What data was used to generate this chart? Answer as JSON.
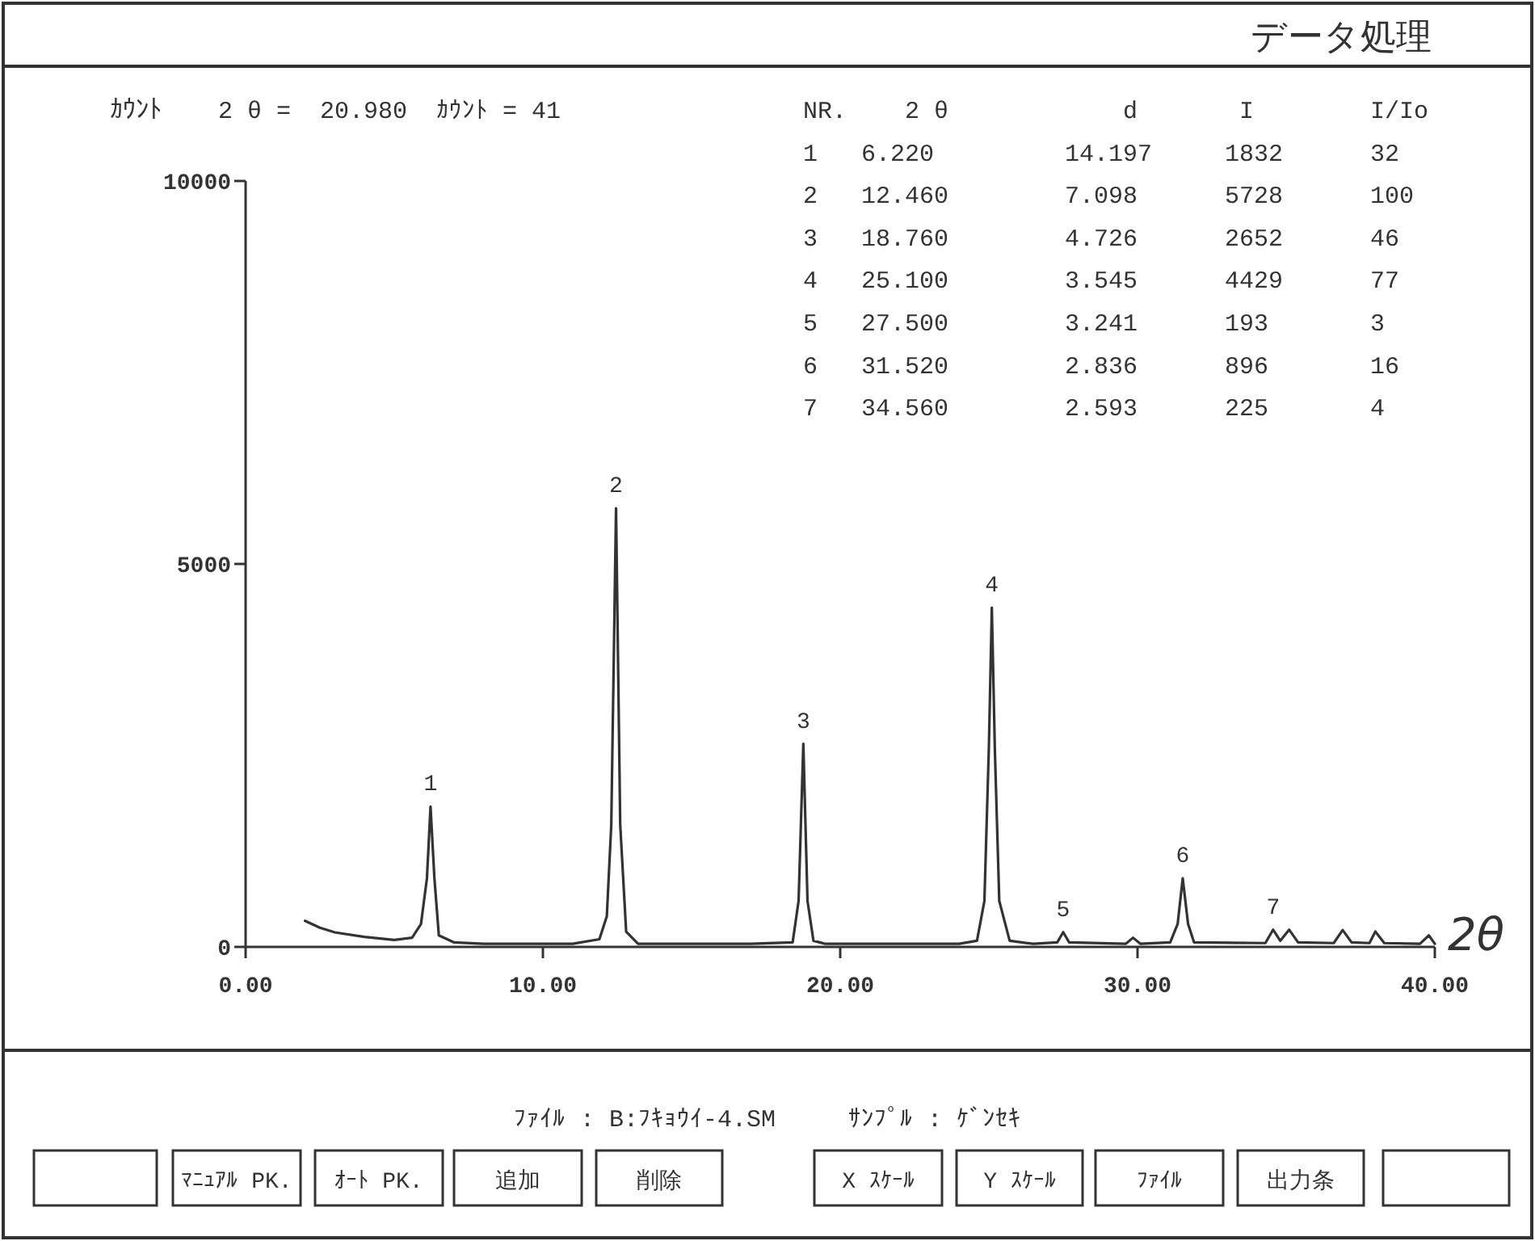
{
  "chart_data": {
    "type": "line",
    "title": "データ処理",
    "xlabel": "2θ",
    "ylabel": "ｶｳﾝﾄ",
    "color": "#333333",
    "x": [
      2.0,
      2.5,
      3,
      4,
      5,
      5.6,
      5.9,
      6.1,
      6.22,
      6.35,
      6.5,
      7,
      8,
      11,
      11.9,
      12.15,
      12.3,
      12.46,
      12.6,
      12.8,
      13.2,
      17,
      18.4,
      18.6,
      18.76,
      18.9,
      19.1,
      19.5,
      24,
      24.6,
      24.85,
      25.0,
      25.1,
      25.2,
      25.35,
      25.7,
      26.5,
      27.3,
      27.5,
      27.7,
      29.6,
      29.85,
      30.1,
      31.1,
      31.35,
      31.52,
      31.7,
      31.9,
      34.3,
      34.56,
      34.8,
      35.1,
      35.4,
      36.6,
      36.9,
      37.2,
      37.8,
      38.0,
      38.3,
      39.5,
      39.8,
      40
    ],
    "values": [
      340,
      250,
      190,
      130,
      90,
      120,
      300,
      900,
      1832,
      900,
      150,
      60,
      40,
      40,
      100,
      400,
      1600,
      5728,
      1600,
      200,
      40,
      40,
      60,
      600,
      2652,
      600,
      80,
      40,
      40,
      80,
      600,
      2600,
      4429,
      2600,
      600,
      80,
      40,
      60,
      193,
      60,
      40,
      120,
      40,
      60,
      300,
      896,
      300,
      60,
      50,
      225,
      80,
      225,
      60,
      50,
      220,
      60,
      50,
      200,
      50,
      40,
      150,
      40
    ],
    "xlim": [
      0,
      40
    ],
    "xticks": [
      {
        "value": 0,
        "label": "0.00"
      },
      {
        "value": 10,
        "label": "10.00"
      },
      {
        "value": 20,
        "label": "20.00"
      },
      {
        "value": 30,
        "label": "30.00"
      },
      {
        "value": 40,
        "label": "40.00"
      }
    ],
    "ylim": [
      0,
      10000
    ],
    "yticks": [
      0,
      5000,
      10000
    ],
    "annotations": [
      "2 θ =  20.980  ｶｳﾝﾄ = 41",
      "NR.    2 θ            d       I        I/Io",
      "1   6.220         14.197     1832      32",
      "2   12.460        7.098      5728      100",
      "3   18.760        4.726      2652      46",
      "4   25.100        3.545      4429      77",
      "5   27.500        3.241      193       3",
      "6   31.520        2.836      896       16",
      "7   34.560        2.593      225       4",
      "ﾌｧｲﾙ : B:ﾌｷｮｳｲ-4.SM     ｻﾝﾌﾟﾙ : ｹﾞﾝｾｷ",
      "ﾏﾆｭｱﾙ PK.",
      "ｵｰﾄ PK.",
      "追加",
      "削除",
      "X ｽｹｰﾙ",
      "Y ｽｹｰﾙ",
      "ﾌｧｲﾙ",
      "出力条",
      {
        "text": "1",
        "x": 6.22,
        "y": 1832
      },
      {
        "text": "2",
        "x": 12.46,
        "y": 5728
      },
      {
        "text": "3",
        "x": 18.76,
        "y": 2652
      },
      {
        "text": "4",
        "x": 25.1,
        "y": 4429
      },
      {
        "text": "5",
        "x": 27.5,
        "y": 193
      },
      {
        "text": "6",
        "x": 31.52,
        "y": 896
      },
      {
        "text": "7",
        "x": 34.56,
        "y": 225
      }
    ]
  }
}
